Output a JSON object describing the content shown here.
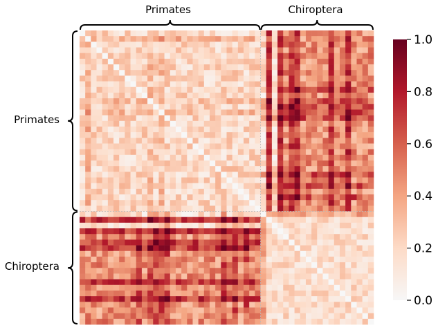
{
  "chart_data": {
    "type": "heatmap",
    "title": "",
    "xlabel": "",
    "ylabel": "",
    "groups": [
      {
        "name": "Primates",
        "size": 32
      },
      {
        "name": "Chiroptera",
        "size": 20
      }
    ],
    "colorbar": {
      "min": 0.0,
      "max": 1.0,
      "ticks": [
        0.0,
        0.2,
        0.4,
        0.6,
        0.8,
        1.0
      ],
      "tick_labels": [
        "0.0",
        "0.2",
        "0.4",
        "0.6",
        "0.8",
        "1.0"
      ],
      "colormap": "RdBu_r (upper half)",
      "stops": [
        "#f7f7f7",
        "#fddbc7",
        "#f4a582",
        "#d6604d",
        "#b2182b",
        "#67001f"
      ]
    },
    "matrix_size": 52,
    "value_model": {
      "diagonal": 0.0,
      "primates_primates": 0.2,
      "primates_chiroptera": 0.45,
      "chiroptera_chiroptera": 0.18,
      "high_cross_species_index": [
        33,
        35,
        37,
        38,
        44,
        47
      ],
      "high_primate_rows_against_chiroptera": [
        10,
        12,
        13,
        14,
        15,
        25,
        27,
        29
      ]
    }
  }
}
